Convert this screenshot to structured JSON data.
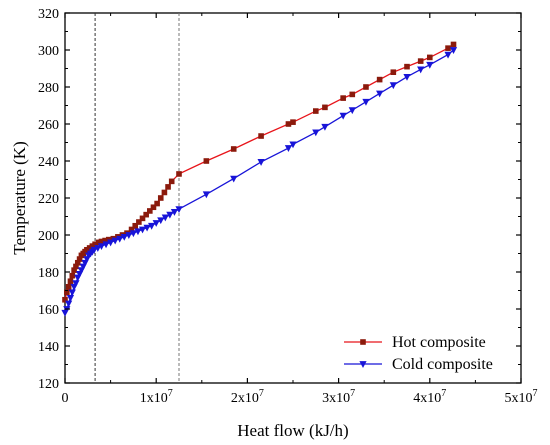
{
  "chart_data": {
    "type": "line",
    "title": "",
    "xlabel": "Heat flow (kJ/h)",
    "ylabel": "Temperature (K)",
    "xlim": [
      0,
      50000000
    ],
    "ylim": [
      120,
      320
    ],
    "x_ticks": [
      {
        "value": 0,
        "mantissa": "0",
        "exponent": ""
      },
      {
        "value": 10000000,
        "mantissa": "1x10",
        "exponent": "7"
      },
      {
        "value": 20000000,
        "mantissa": "2x10",
        "exponent": "7"
      },
      {
        "value": 30000000,
        "mantissa": "3x10",
        "exponent": "7"
      },
      {
        "value": 40000000,
        "mantissa": "4x10",
        "exponent": "7"
      },
      {
        "value": 50000000,
        "mantissa": "5x10",
        "exponent": "7"
      }
    ],
    "y_ticks": [
      "120",
      "140",
      "160",
      "180",
      "200",
      "220",
      "240",
      "260",
      "280",
      "300",
      "320"
    ],
    "grid": false,
    "legend_position": "bottom-right",
    "vertical_reference_lines": [
      3300000,
      12500000
    ],
    "series": [
      {
        "name": "Hot composite",
        "color": "#e8141a",
        "marker_color": "#8b1a0c",
        "marker": "square",
        "x": [
          0,
          200000,
          400000,
          600000,
          800000,
          1000000,
          1200000,
          1400000,
          1600000,
          1800000,
          2000000,
          2200000,
          2400000,
          2700000,
          3000000,
          3300000,
          3700000,
          4000000,
          4400000,
          4800000,
          5300000,
          5800000,
          6300000,
          6800000,
          7300000,
          7700000,
          8100000,
          8500000,
          8900000,
          9300000,
          9700000,
          10100000,
          10500000,
          10900000,
          11300000,
          11700000,
          12500000,
          15500000,
          18500000,
          21500000,
          24500000,
          25000000,
          27500000,
          28500000,
          30500000,
          31500000,
          33000000,
          34500000,
          36000000,
          37500000,
          39000000,
          40000000,
          42000000,
          42600000
        ],
        "y": [
          165,
          169,
          172,
          175,
          178,
          181,
          183,
          185,
          187,
          189,
          190,
          191,
          192,
          193,
          194,
          195,
          196,
          196.5,
          197,
          197.5,
          198,
          199,
          200,
          201,
          203,
          205,
          207,
          209,
          211,
          213,
          215,
          217,
          220,
          223,
          226,
          229,
          233,
          240,
          246.5,
          253.5,
          260,
          261,
          267,
          269,
          274,
          276,
          280,
          284,
          288,
          291,
          294,
          296,
          301,
          303
        ]
      },
      {
        "name": "Cold composite",
        "color": "#1814d8",
        "marker_color": "#1814d8",
        "marker": "triangle-down",
        "x": [
          0,
          200000,
          400000,
          600000,
          800000,
          1000000,
          1200000,
          1400000,
          1600000,
          1800000,
          2000000,
          2200000,
          2400000,
          2600000,
          2800000,
          3000000,
          3200000,
          3600000,
          4000000,
          4500000,
          5000000,
          5500000,
          6000000,
          6500000,
          7000000,
          7500000,
          8000000,
          8500000,
          9000000,
          9500000,
          10000000,
          10500000,
          11000000,
          11500000,
          12000000,
          12500000,
          15500000,
          18500000,
          21500000,
          24500000,
          25000000,
          27500000,
          28500000,
          30500000,
          31500000,
          33000000,
          34500000,
          36000000,
          37500000,
          39000000,
          40000000,
          42000000,
          42600000
        ],
        "y": [
          158,
          160,
          163,
          166,
          169,
          172,
          174,
          177,
          179,
          181,
          183,
          185,
          187,
          189,
          190,
          191,
          192,
          193,
          194,
          195,
          196,
          197,
          198,
          199,
          200,
          201,
          202,
          203,
          204,
          205,
          206.5,
          208,
          209.5,
          211,
          212.5,
          214,
          222,
          230.5,
          239.5,
          247,
          249,
          255.5,
          258.5,
          264.5,
          267.5,
          272,
          276.5,
          281,
          285.5,
          289.5,
          292,
          297.5,
          300
        ]
      }
    ]
  }
}
